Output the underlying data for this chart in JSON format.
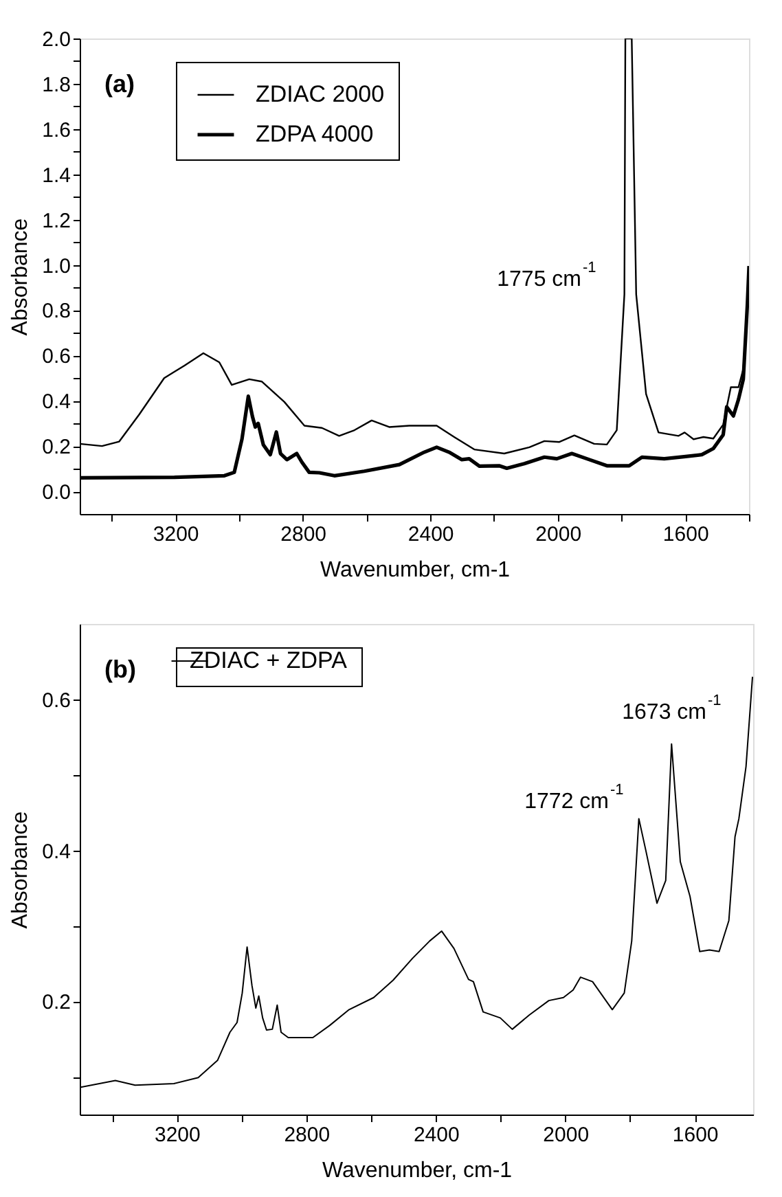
{
  "chart_data": [
    {
      "type": "line",
      "xlabel": "Wavenumber, cm-1",
      "ylabel": "Absorbance",
      "xlim": [
        3500,
        1400
      ],
      "ylim": [
        -0.1,
        2.0
      ],
      "xticks": [
        {
          "value": 3400,
          "label": null
        },
        3200,
        {
          "value": 3000,
          "label": null
        },
        2800,
        {
          "value": 2600,
          "label": null
        },
        2400,
        {
          "value": 2200,
          "label": null
        },
        2000,
        {
          "value": 1800,
          "label": null
        },
        1600,
        {
          "value": 1400,
          "label": null
        }
      ],
      "yticks": [
        {
          "value": 0,
          "label": "0.0"
        },
        {
          "value": 0.1,
          "label": null
        },
        0.2,
        {
          "value": 0.3,
          "label": null
        },
        0.4,
        {
          "value": 0.5,
          "label": null
        },
        0.6,
        {
          "value": 0.7,
          "label": null
        },
        0.8,
        {
          "value": 0.9,
          "label": null
        },
        {
          "value": 1.0,
          "label": "1.0"
        },
        {
          "value": 1.1,
          "label": null
        },
        1.2,
        {
          "value": 1.3,
          "label": null
        },
        1.4,
        {
          "value": 1.5,
          "label": null
        },
        1.6,
        {
          "value": 1.7,
          "label": null
        },
        1.8,
        {
          "value": 1.9,
          "label": null
        },
        {
          "value": 2.0,
          "label": "2.0"
        }
      ],
      "grid": false,
      "legend": "top left",
      "line_style": "solid",
      "marker": "none",
      "annotations": [
        "(a)",
        "1775 cm$^{-1}$"
      ],
      "series": [
        {
          "name": "ZDIAC 2000",
          "color": "#000000",
          "x": [
            3500,
            3430,
            3376,
            3313,
            3235,
            3172,
            3112,
            3062,
            3023,
            2968,
            2929,
            2858,
            2795,
            2740,
            2686,
            2638,
            2584,
            2529,
            2466,
            2380,
            2325,
            2262,
            2168,
            2089,
            2042,
            1995,
            1948,
            1886,
            1846,
            1815,
            1791,
            1788,
            1768,
            1754,
            1723,
            1684,
            1621,
            1602,
            1574,
            1543,
            1512,
            1481,
            1457,
            1433,
            1418,
            1405,
            1400
          ],
          "values": [
            0.21,
            0.2,
            0.22,
            0.34,
            0.5,
            0.555,
            0.61,
            0.57,
            0.47,
            0.495,
            0.485,
            0.395,
            0.29,
            0.28,
            0.245,
            0.27,
            0.313,
            0.284,
            0.29,
            0.29,
            0.24,
            0.185,
            0.167,
            0.195,
            0.222,
            0.218,
            0.247,
            0.21,
            0.207,
            0.27,
            0.87,
            2.0,
            2.0,
            0.87,
            0.43,
            0.26,
            0.245,
            0.26,
            0.23,
            0.24,
            0.233,
            0.295,
            0.46,
            0.46,
            0.54,
            0.83,
            0.995
          ]
        },
        {
          "name": "ZDPA 4000",
          "color": "#000000",
          "x": [
            3500,
            3203,
            3046,
            3015,
            2991,
            2971,
            2958,
            2949,
            2940,
            2924,
            2902,
            2883,
            2870,
            2850,
            2819,
            2803,
            2780,
            2748,
            2701,
            2607,
            2497,
            2419,
            2380,
            2341,
            2301,
            2278,
            2246,
            2184,
            2160,
            2105,
            2042,
            2003,
            1956,
            1901,
            1846,
            1776,
            1736,
            1666,
            1604,
            1548,
            1512,
            1481,
            1470,
            1449,
            1433,
            1418,
            1405,
            1400
          ],
          "values": [
            0.06,
            0.062,
            0.069,
            0.084,
            0.23,
            0.42,
            0.33,
            0.284,
            0.3,
            0.206,
            0.162,
            0.262,
            0.167,
            0.14,
            0.167,
            0.129,
            0.084,
            0.082,
            0.069,
            0.089,
            0.118,
            0.173,
            0.195,
            0.173,
            0.14,
            0.144,
            0.111,
            0.113,
            0.102,
            0.122,
            0.151,
            0.144,
            0.167,
            0.14,
            0.113,
            0.113,
            0.151,
            0.144,
            0.153,
            0.162,
            0.189,
            0.25,
            0.373,
            0.333,
            0.406,
            0.495,
            0.83,
            0.995
          ]
        }
      ]
    },
    {
      "type": "line",
      "xlabel": "Wavenumber, cm-1",
      "ylabel": "Absorbance",
      "xlim": [
        3500,
        1420
      ],
      "ylim": [
        0.05,
        0.7
      ],
      "xticks": [
        {
          "value": 3400,
          "label": null
        },
        3200,
        {
          "value": 3000,
          "label": null
        },
        2800,
        {
          "value": 2600,
          "label": null
        },
        2400,
        {
          "value": 2200,
          "label": null
        },
        2000,
        {
          "value": 1800,
          "label": null
        },
        1600
      ],
      "yticks": [
        {
          "value": 0.1,
          "label": null
        },
        0.2,
        {
          "value": 0.3,
          "label": null
        },
        0.4,
        {
          "value": 0.5,
          "label": null
        },
        0.6
      ],
      "grid": false,
      "legend": "top left",
      "line_style": "solid",
      "marker": "none",
      "annotations": [
        "(b)",
        "1772 cm$^{-1}$",
        "1673 cm$^{-1}$"
      ],
      "series": [
        {
          "name": "ZDIAC + ZDPA",
          "color": "#000000",
          "x": [
            3500,
            3390,
            3329,
            3209,
            3134,
            3074,
            3036,
            3014,
            2998,
            2983,
            2968,
            2956,
            2947,
            2935,
            2923,
            2905,
            2890,
            2878,
            2856,
            2780,
            2728,
            2668,
            2592,
            2532,
            2472,
            2419,
            2382,
            2344,
            2299,
            2284,
            2254,
            2201,
            2164,
            2111,
            2051,
            2006,
            1976,
            1953,
            1916,
            1855,
            1818,
            1795,
            1773,
            1751,
            1717,
            1690,
            1672,
            1645,
            1615,
            1585,
            1555,
            1525,
            1495,
            1476,
            1464,
            1442,
            1422
          ],
          "values": [
            0.086,
            0.095,
            0.089,
            0.091,
            0.099,
            0.122,
            0.159,
            0.172,
            0.211,
            0.272,
            0.221,
            0.191,
            0.207,
            0.178,
            0.162,
            0.163,
            0.195,
            0.159,
            0.152,
            0.152,
            0.168,
            0.189,
            0.205,
            0.228,
            0.257,
            0.28,
            0.293,
            0.27,
            0.229,
            0.226,
            0.186,
            0.178,
            0.163,
            0.182,
            0.201,
            0.205,
            0.215,
            0.232,
            0.226,
            0.189,
            0.211,
            0.28,
            0.442,
            0.399,
            0.33,
            0.36,
            0.541,
            0.385,
            0.339,
            0.266,
            0.268,
            0.266,
            0.307,
            0.418,
            0.442,
            0.511,
            0.63
          ]
        }
      ]
    }
  ]
}
